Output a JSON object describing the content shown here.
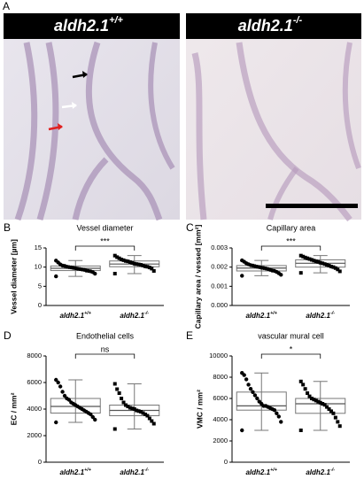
{
  "figure": {
    "panel_label": "A",
    "images": [
      {
        "title": "aldh2.1",
        "superscript": "+/+"
      },
      {
        "title": "aldh2.1",
        "superscript": "-/-"
      }
    ]
  },
  "chart_data": [
    {
      "type": "box",
      "panel_label": "B",
      "title": "Vessel diameter",
      "ylabel": "Vessel diameter [µm]",
      "categories": [
        "aldh2.1",
        "aldh2.1"
      ],
      "category_superscripts": [
        "+/+",
        "-/-"
      ],
      "ylim": [
        0,
        15
      ],
      "yticks": [
        0,
        5,
        10,
        15
      ],
      "significance": "***",
      "boxes": [
        {
          "min": 7.6,
          "q1": 9.1,
          "median": 9.7,
          "q3": 10.3,
          "max": 11.7,
          "points": [
            7.6,
            8.3,
            8.7,
            8.9,
            9.0,
            9.1,
            9.3,
            9.4,
            9.5,
            9.6,
            9.7,
            9.8,
            9.9,
            10.0,
            10.1,
            10.3,
            10.4,
            10.7,
            11.2,
            11.7
          ]
        },
        {
          "min": 8.3,
          "q1": 10.1,
          "median": 10.8,
          "q3": 11.6,
          "max": 13.0,
          "points": [
            8.3,
            9.0,
            9.6,
            9.9,
            10.1,
            10.2,
            10.4,
            10.6,
            10.7,
            10.8,
            10.9,
            11.1,
            11.3,
            11.5,
            11.6,
            11.8,
            12.0,
            12.3,
            12.6,
            13.0
          ]
        }
      ]
    },
    {
      "type": "box",
      "panel_label": "C",
      "title": "Capillary area",
      "ylabel": "Capillary area / vessed [mm²]",
      "categories": [
        "aldh2.1",
        "aldh2.1"
      ],
      "category_superscripts": [
        "+/+",
        "-/-"
      ],
      "ylim": [
        0,
        0.003
      ],
      "yticks": [
        {
          "value": 0,
          "label": "0.000"
        },
        0.001,
        0.002,
        0.003
      ],
      "significance": "***",
      "boxes": [
        {
          "min": 0.00155,
          "q1": 0.0018,
          "median": 0.00195,
          "q3": 0.00208,
          "max": 0.00235,
          "points": [
            0.00155,
            0.0016,
            0.00168,
            0.00175,
            0.0018,
            0.00182,
            0.00186,
            0.0019,
            0.00193,
            0.00195,
            0.00197,
            0.002,
            0.00202,
            0.00205,
            0.00208,
            0.0021,
            0.00215,
            0.0022,
            0.00228,
            0.00235
          ]
        },
        {
          "min": 0.0017,
          "q1": 0.002,
          "median": 0.0022,
          "q3": 0.00238,
          "max": 0.0026,
          "points": [
            0.0017,
            0.00178,
            0.00188,
            0.00195,
            0.002,
            0.00203,
            0.00208,
            0.00212,
            0.00216,
            0.0022,
            0.00223,
            0.00227,
            0.0023,
            0.00234,
            0.00238,
            0.00242,
            0.00246,
            0.0025,
            0.00255,
            0.0026
          ]
        }
      ]
    },
    {
      "type": "box",
      "panel_label": "D",
      "title": "Endothelial cells",
      "ylabel": "EC / mm²",
      "categories": [
        "aldh2.1",
        "aldh2.1"
      ],
      "category_superscripts": [
        "+/+",
        "-/-"
      ],
      "ylim": [
        0,
        8000
      ],
      "yticks": [
        0,
        2000,
        4000,
        6000,
        8000
      ],
      "significance": "ns",
      "boxes": [
        {
          "min": 3000,
          "q1": 3700,
          "median": 4200,
          "q3": 4800,
          "max": 6200,
          "points": [
            3000,
            3200,
            3400,
            3600,
            3700,
            3800,
            3900,
            4000,
            4100,
            4200,
            4300,
            4400,
            4500,
            4700,
            4800,
            5000,
            5300,
            5700,
            6000,
            6200
          ]
        },
        {
          "min": 2500,
          "q1": 3500,
          "median": 3900,
          "q3": 4300,
          "max": 5900,
          "points": [
            2500,
            2900,
            3100,
            3300,
            3500,
            3600,
            3700,
            3800,
            3850,
            3900,
            4000,
            4050,
            4100,
            4200,
            4300,
            4500,
            4800,
            5200,
            5500,
            5900
          ]
        }
      ]
    },
    {
      "type": "box",
      "panel_label": "E",
      "title": "vascular mural cell",
      "ylabel": "VMC / mm²",
      "categories": [
        "aldh2.1",
        "aldh2.1"
      ],
      "category_superscripts": [
        "+/+",
        "-/-"
      ],
      "ylim": [
        0,
        10000
      ],
      "yticks": [
        0,
        2000,
        4000,
        6000,
        8000,
        10000
      ],
      "significance": "*",
      "boxes": [
        {
          "min": 3000,
          "q1": 4900,
          "median": 5300,
          "q3": 6600,
          "max": 8400,
          "points": [
            3000,
            3800,
            4300,
            4600,
            4900,
            5000,
            5100,
            5200,
            5300,
            5300,
            5500,
            5700,
            6000,
            6300,
            6600,
            6900,
            7300,
            7800,
            8200,
            8400
          ]
        },
        {
          "min": 3000,
          "q1": 4600,
          "median": 5500,
          "q3": 6000,
          "max": 7600,
          "points": [
            3000,
            3400,
            3800,
            4200,
            4600,
            4800,
            5000,
            5200,
            5400,
            5500,
            5600,
            5700,
            5800,
            5900,
            6000,
            6200,
            6500,
            6900,
            7300,
            7600
          ]
        }
      ]
    }
  ]
}
